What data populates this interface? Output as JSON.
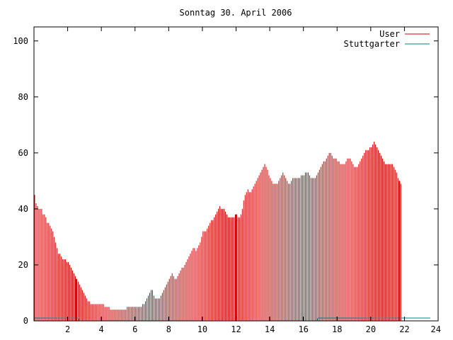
{
  "chart_data": {
    "type": "bar",
    "title": "Sonntag 30. April 2006",
    "xlabel": "",
    "ylabel": "",
    "xlim": [
      0,
      24
    ],
    "ylim": [
      0,
      105
    ],
    "x_ticks": [
      "2",
      "4",
      "6",
      "8",
      "10",
      "12",
      "14",
      "16",
      "18",
      "20",
      "22",
      "24"
    ],
    "y_ticks": [
      "0",
      "20",
      "40",
      "60",
      "80",
      "100"
    ],
    "grid": false,
    "legend_position": "top-right",
    "series": [
      {
        "name": "User",
        "color": "#cc0000",
        "x_step_hours": 0.0833,
        "values": [
          45,
          42,
          41,
          40,
          40,
          40,
          38,
          38,
          37,
          35,
          35,
          34,
          33,
          32,
          30,
          28,
          26,
          24,
          24,
          23,
          22,
          22,
          22,
          21,
          21,
          20,
          19,
          18,
          17,
          16,
          15,
          14,
          13,
          12,
          11,
          10,
          9,
          8,
          7,
          7,
          6,
          6,
          6,
          6,
          6,
          6,
          6,
          6,
          6,
          6,
          5,
          5,
          5,
          5,
          4,
          4,
          4,
          4,
          4,
          4,
          4,
          4,
          4,
          4,
          4,
          4,
          5,
          5,
          5,
          5,
          5,
          5,
          5,
          5,
          5,
          5,
          5,
          6,
          6,
          7,
          8,
          9,
          10,
          11,
          11,
          9,
          8,
          8,
          8,
          8,
          9,
          10,
          11,
          12,
          13,
          14,
          15,
          16,
          17,
          16,
          15,
          15,
          16,
          17,
          18,
          19,
          19,
          20,
          21,
          22,
          23,
          24,
          25,
          26,
          26,
          25,
          26,
          27,
          28,
          30,
          32,
          32,
          32,
          33,
          34,
          35,
          36,
          36,
          37,
          38,
          39,
          40,
          41,
          40,
          40,
          40,
          39,
          38,
          37,
          37,
          37,
          37,
          37,
          38,
          38,
          37,
          37,
          38,
          40,
          43,
          45,
          46,
          47,
          46,
          46,
          47,
          48,
          49,
          50,
          51,
          52,
          53,
          54,
          55,
          56,
          55,
          54,
          52,
          51,
          50,
          49,
          49,
          49,
          49,
          50,
          51,
          52,
          53,
          52,
          51,
          50,
          49,
          49,
          50,
          51,
          51,
          51,
          51,
          51,
          51,
          52,
          52,
          52,
          53,
          53,
          53,
          52,
          51,
          51,
          51,
          51,
          52,
          53,
          54,
          55,
          56,
          57,
          57,
          58,
          59,
          60,
          60,
          59,
          58,
          58,
          58,
          57,
          57,
          56,
          56,
          56,
          56,
          57,
          58,
          58,
          58,
          57,
          56,
          55,
          55,
          55,
          56,
          57,
          58,
          59,
          60,
          61,
          61,
          61,
          62,
          62,
          63,
          64,
          63,
          62,
          61,
          60,
          59,
          58,
          57,
          56,
          56,
          56,
          56,
          56,
          56,
          55,
          54,
          53,
          51,
          50,
          49
        ]
      },
      {
        "name": "Stuttgarter",
        "color": "#008080",
        "x_step_hours": 0.0833,
        "values": [
          1,
          1,
          1,
          1,
          1,
          1,
          1,
          1,
          1,
          1,
          1,
          1,
          1,
          1,
          1,
          1,
          1,
          1,
          1,
          1,
          1,
          1,
          1,
          1,
          1,
          1,
          1,
          1,
          1,
          1,
          1,
          1,
          0,
          0,
          0,
          0,
          0,
          0,
          0,
          0,
          0,
          0,
          0,
          0,
          0,
          0,
          0,
          0,
          0,
          0,
          0,
          0,
          0,
          0,
          0,
          0,
          0,
          0,
          0,
          0,
          0,
          0,
          0,
          0,
          0,
          0,
          0,
          0,
          0,
          0,
          0,
          0,
          0,
          0,
          0,
          0,
          0,
          0,
          0,
          0,
          0,
          0,
          0,
          0,
          0,
          0,
          0,
          0,
          0,
          0,
          0,
          0,
          0,
          0,
          0,
          0,
          0,
          0,
          0,
          0,
          0,
          0,
          0,
          0,
          0,
          0,
          0,
          0,
          0,
          0,
          0,
          0,
          0,
          0,
          0,
          0,
          0,
          0,
          0,
          0,
          0,
          0,
          0,
          0,
          0,
          0,
          0,
          0,
          0,
          0,
          0,
          0,
          0,
          0,
          0,
          0,
          0,
          0,
          0,
          0,
          0,
          0,
          0,
          0,
          0,
          0,
          0,
          0,
          0,
          0,
          0,
          0,
          0,
          0,
          0,
          0,
          0,
          0,
          0,
          0,
          0,
          0,
          0,
          0,
          0,
          0,
          0,
          0,
          0,
          0,
          0,
          0,
          0,
          0,
          0,
          0,
          0,
          0,
          0,
          0,
          0,
          0,
          0,
          0,
          0,
          0,
          0,
          0,
          0,
          0,
          0,
          0,
          0,
          0,
          0,
          0,
          0,
          0,
          0,
          0,
          0,
          0,
          1,
          1,
          1,
          1,
          1,
          1,
          1,
          1,
          1,
          1,
          1,
          1,
          1,
          1,
          1,
          1,
          1,
          1,
          1,
          1,
          1,
          1,
          1,
          1,
          1,
          1,
          1,
          1,
          1,
          1,
          1,
          1,
          1,
          1,
          1,
          1,
          1,
          1,
          1,
          1,
          1,
          1,
          1,
          1,
          1,
          1,
          1,
          1,
          1,
          1,
          1,
          1,
          1,
          1,
          1,
          1,
          1,
          1,
          1,
          1,
          1,
          1,
          1,
          1,
          1,
          1,
          1,
          1,
          1,
          1,
          1,
          1,
          1,
          1,
          1,
          1,
          1,
          1,
          1,
          1,
          1
        ]
      }
    ],
    "highlight_x": [
      2.5,
      12,
      21.7
    ]
  }
}
